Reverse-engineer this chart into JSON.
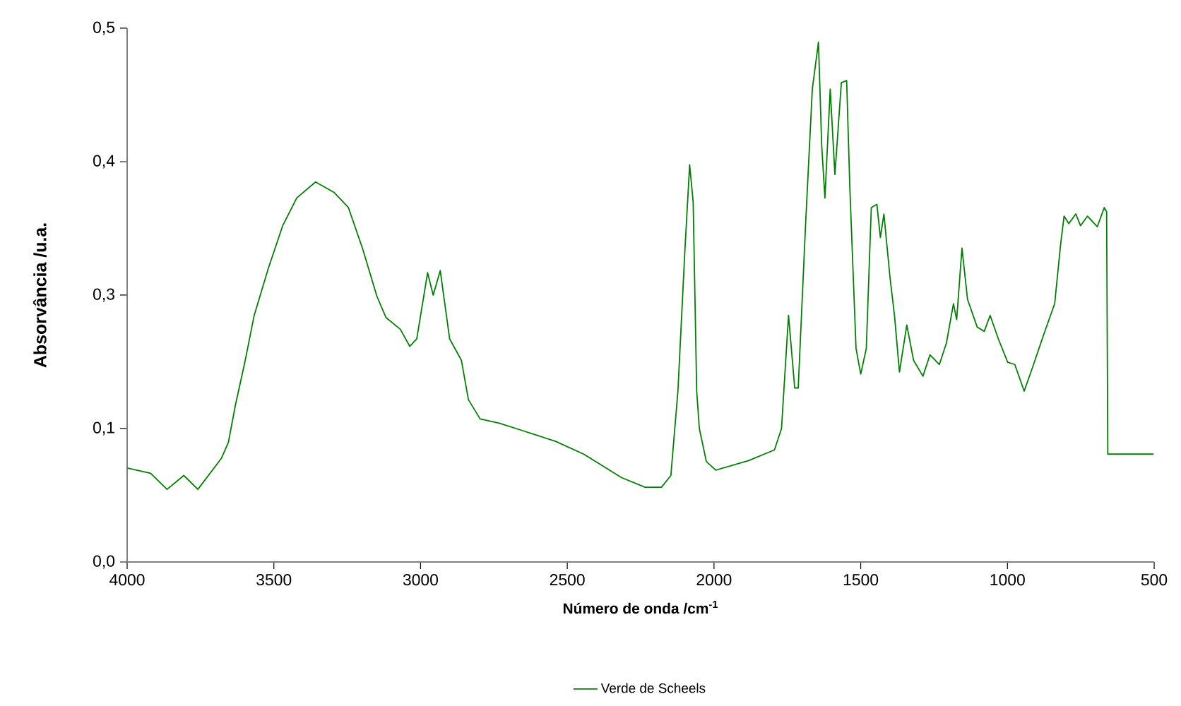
{
  "chart_data": {
    "type": "line",
    "xlabel": "**Número de onda /cm$^{-1}$**",
    "ylabel": "Absorvância /u.a.",
    "x": [
      4000,
      3920,
      3864,
      3807,
      3759,
      3679,
      3655,
      3631,
      3599,
      3567,
      3519,
      3470,
      3422,
      3358,
      3294,
      3246,
      3197,
      3149,
      3118,
      3069,
      3037,
      3013,
      2976,
      2957,
      2933,
      2901,
      2861,
      2837,
      2797,
      2732,
      2652,
      2540,
      2444,
      2315,
      2235,
      2179,
      2147,
      2123,
      2099,
      2083,
      2071,
      2059,
      2050,
      2026,
      1994,
      1882,
      1794,
      1770,
      1746,
      1725,
      1713,
      1689,
      1665,
      1644,
      1633,
      1622,
      1604,
      1588,
      1566,
      1548,
      1537,
      1516,
      1500,
      1481,
      1464,
      1445,
      1433,
      1421,
      1400,
      1385,
      1368,
      1343,
      1320,
      1288,
      1264,
      1232,
      1208,
      1184,
      1173,
      1155,
      1136,
      1103,
      1079,
      1059,
      1031,
      999,
      975,
      943,
      911,
      879,
      839,
      819,
      807,
      791,
      767,
      751,
      727,
      694,
      670,
      662,
      658,
      502
    ],
    "series": [
      {
        "name": "Verde de Scheels",
        "color": "#008000",
        "values": [
          0.088,
          0.083,
          0.068,
          0.081,
          0.068,
          0.097,
          0.112,
          0.147,
          0.187,
          0.231,
          0.275,
          0.315,
          0.341,
          0.356,
          0.346,
          0.332,
          0.293,
          0.249,
          0.229,
          0.218,
          0.202,
          0.209,
          0.271,
          0.25,
          0.273,
          0.209,
          0.189,
          0.152,
          0.134,
          0.13,
          0.123,
          0.113,
          0.101,
          0.079,
          0.07,
          0.07,
          0.081,
          0.16,
          0.293,
          0.372,
          0.337,
          0.16,
          0.125,
          0.094,
          0.086,
          0.095,
          0.105,
          0.125,
          0.231,
          0.163,
          0.163,
          0.31,
          0.443,
          0.487,
          0.39,
          0.341,
          0.443,
          0.363,
          0.449,
          0.451,
          0.35,
          0.2,
          0.176,
          0.2,
          0.332,
          0.335,
          0.304,
          0.326,
          0.266,
          0.231,
          0.178,
          0.222,
          0.189,
          0.174,
          0.194,
          0.185,
          0.205,
          0.242,
          0.227,
          0.294,
          0.246,
          0.22,
          0.216,
          0.231,
          0.209,
          0.187,
          0.185,
          0.16,
          0.185,
          0.211,
          0.242,
          0.297,
          0.324,
          0.317,
          0.326,
          0.315,
          0.324,
          0.314,
          0.332,
          0.328,
          0.101,
          0.101
        ]
      }
    ],
    "xlim": [
      4000,
      500
    ],
    "ylim": [
      0,
      0.5
    ],
    "xticks": [
      4000,
      3500,
      3000,
      2500,
      2000,
      1500,
      1000,
      500
    ],
    "yticks": [
      {
        "value": 0,
        "label": "0,0"
      },
      {
        "value": 0.125,
        "label": "0,1"
      },
      {
        "value": 0.25,
        "label": "0,3"
      },
      {
        "value": 0.375,
        "label": "0,4"
      },
      {
        "value": 0.5,
        "label": "0,5"
      }
    ],
    "grid": false,
    "legend": "bottom",
    "marker": "none",
    "line_style": "solid"
  }
}
